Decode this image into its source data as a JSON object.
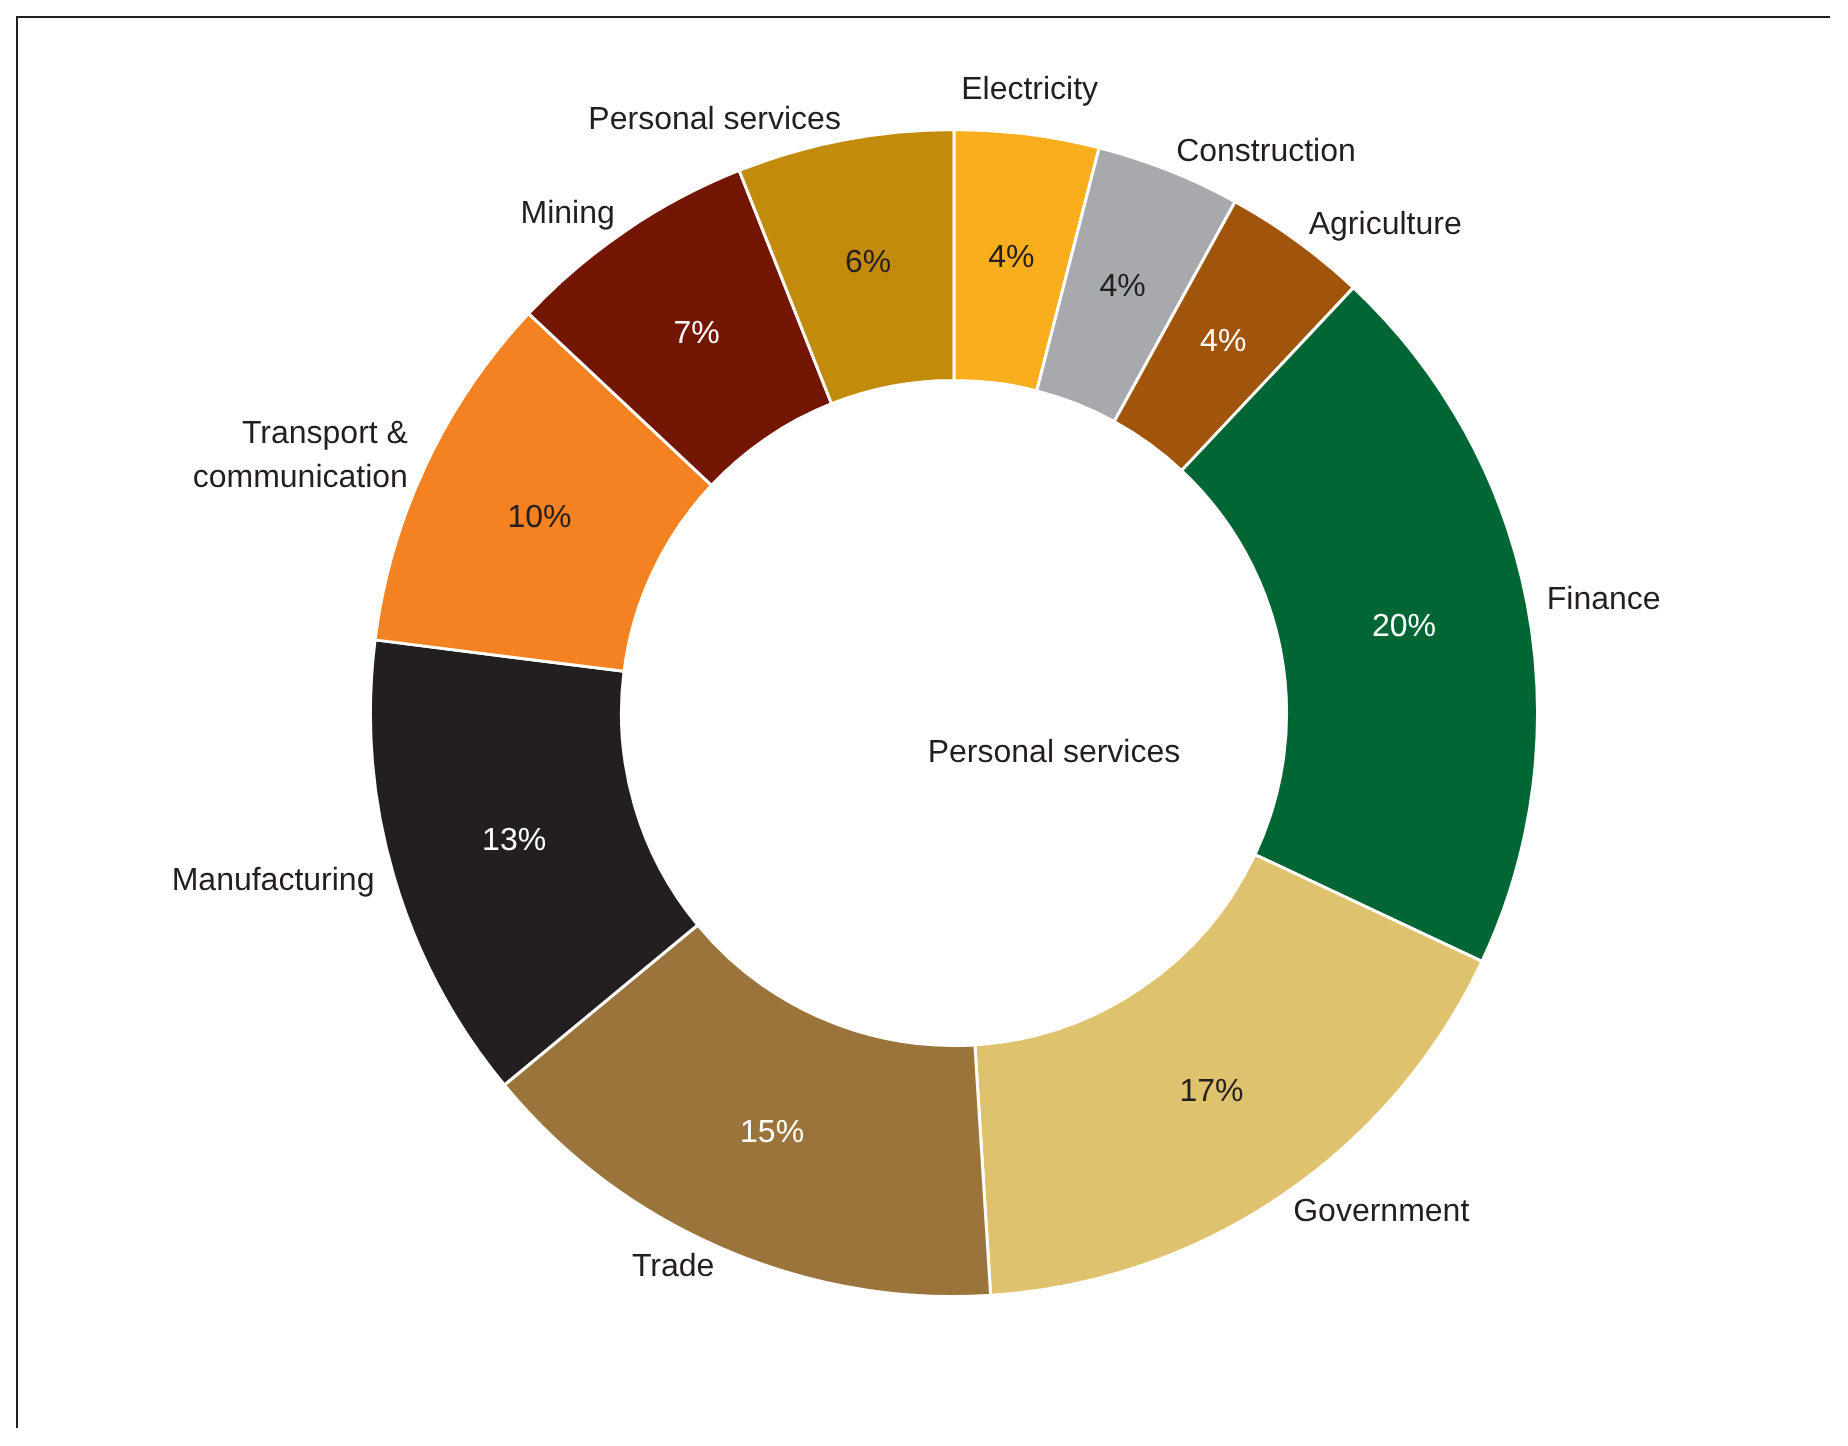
{
  "chart_data": {
    "type": "donut",
    "categories": [
      "Electricity",
      "Construction",
      "Agriculture",
      "Finance",
      "Government",
      "Trade",
      "Manufacturing",
      "Transport & communication",
      "Mining",
      "Personal services"
    ],
    "values": [
      4,
      4,
      4,
      20,
      17,
      15,
      13,
      10,
      7,
      6
    ],
    "value_labels": [
      "4%",
      "4%",
      "4%",
      "20%",
      "17%",
      "15%",
      "13%",
      "10%",
      "7%",
      "6%"
    ],
    "colors": [
      "#f9ae1e",
      "#a7a9ac",
      "#a0550a",
      "#006633",
      "#dfc26d",
      "#9b743c",
      "#231f20",
      "#f48221",
      "#731604",
      "#c38b0b"
    ],
    "annotations": [
      "Personal services"
    ],
    "legend": false
  }
}
